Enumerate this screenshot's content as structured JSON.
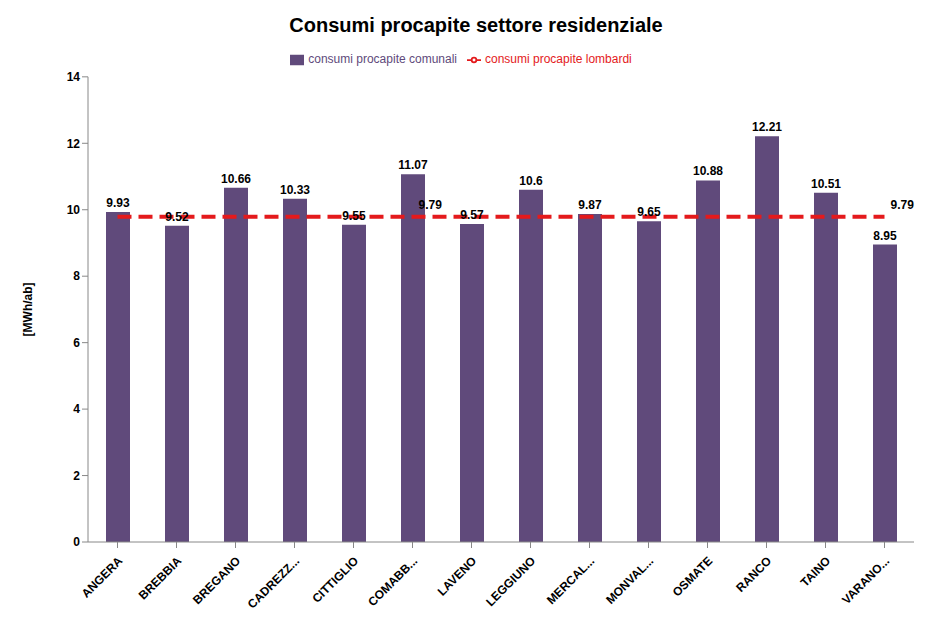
{
  "chart_data": {
    "type": "bar",
    "title": "Consumi procapite settore residenziale",
    "ylabel": "[MWh/ab]",
    "categories": [
      "ANGERA",
      "BREBBIA",
      "BREGANO",
      "CADREZZ...",
      "CITTIGLIO",
      "COMABB...",
      "LAVENO",
      "LEGGIUNO",
      "MERCAL...",
      "MONVAL...",
      "OSMATE",
      "RANCO",
      "TAINO",
      "VARANO..."
    ],
    "series": [
      {
        "name": "consumi procapite comunali",
        "type": "bar",
        "color": "#604a7b",
        "data_labels": true,
        "values": [
          9.93,
          9.52,
          10.66,
          10.33,
          9.55,
          11.07,
          9.57,
          10.6,
          9.87,
          9.65,
          10.88,
          12.21,
          10.51,
          8.95
        ]
      },
      {
        "name": "consumi procapite lombardi",
        "type": "line",
        "color": "#e41a1c",
        "line_style": "dashed",
        "marker": "none",
        "values": [
          9.79,
          9.79,
          9.79,
          9.79,
          9.79,
          9.79,
          9.79,
          9.79,
          9.79,
          9.79,
          9.79,
          9.79,
          9.79,
          9.79
        ],
        "value_labels": [
          null,
          null,
          null,
          null,
          null,
          "9.79",
          null,
          null,
          null,
          null,
          null,
          null,
          null,
          "9.79"
        ]
      }
    ],
    "ylim": [
      0,
      14
    ],
    "yticks": [
      0,
      2,
      4,
      6,
      8,
      10,
      12,
      14
    ],
    "grid": false,
    "legend": "top"
  }
}
